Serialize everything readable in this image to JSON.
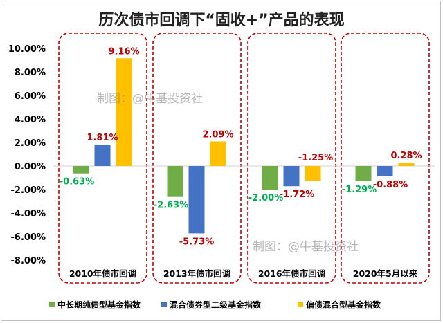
{
  "chart_data": {
    "type": "bar",
    "title": "历次债市回调下“固收+”产品的表现",
    "categories": [
      "2010年债市回调",
      "2013年债市回调",
      "2016年债市回调",
      "2020年5月以来"
    ],
    "series": [
      {
        "name": "中长期纯债型基金指数",
        "color": "#70ad47",
        "label_color": "#00b050",
        "values": [
          -0.63,
          -2.63,
          -2.0,
          -1.29
        ],
        "labels": [
          "-0.63%",
          "-2.63%",
          "-2.00%",
          "-1.29%"
        ]
      },
      {
        "name": "混合债券型二级基金指数",
        "color": "#4472c4",
        "label_color": "#c00000",
        "values": [
          1.81,
          -5.73,
          -1.72,
          -0.88
        ],
        "labels": [
          "1.81%",
          "-5.73%",
          "-1.72%",
          "-0.88%"
        ]
      },
      {
        "name": "偏债混合型基金指数",
        "color": "#ffc000",
        "label_color": "#c00000",
        "values": [
          9.16,
          2.09,
          -1.25,
          0.28
        ],
        "labels": [
          "9.16%",
          "2.09%",
          "-1.25%",
          "0.28%"
        ]
      }
    ],
    "yticks": [
      10,
      8,
      6,
      4,
      2,
      0,
      -2,
      -4,
      -6,
      -8
    ],
    "ytick_labels": [
      "10.00%",
      "8.00%",
      "6.00%",
      "4.00%",
      "2.00%",
      "0.00%",
      "-2.00%",
      "-4.00%",
      "-6.00%",
      "-8.00%"
    ],
    "ylim": [
      -8,
      10
    ],
    "grid": false,
    "legend_position": "bottom",
    "highlight_box_color": "#c00000"
  },
  "watermarks": [
    "制图：@牛基投资社",
    "制图：@牛基投资社"
  ]
}
